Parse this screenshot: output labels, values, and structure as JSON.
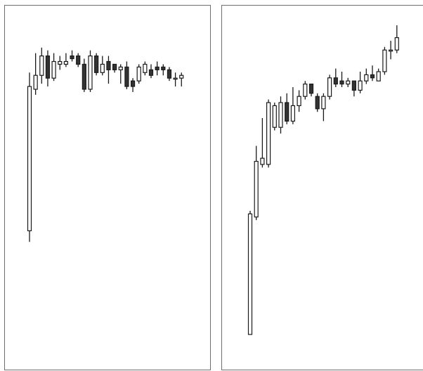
{
  "chart_data": [
    {
      "type": "candlestick",
      "title": "",
      "xlabel": "",
      "ylabel": "",
      "ylim": [
        0,
        100
      ],
      "grid": false,
      "legend": "none",
      "colors": {
        "wick": "#1a1a1a",
        "body_up": "#ffffff",
        "body_down": "#333333",
        "outline": "#1a1a1a"
      },
      "series": [
        {
          "candles": [
            {
              "o": 29,
              "c": 81,
              "h": 86,
              "l": 25
            },
            {
              "o": 80,
              "c": 85,
              "h": 93,
              "l": 78
            },
            {
              "o": 85,
              "c": 92,
              "h": 95,
              "l": 82
            },
            {
              "o": 92,
              "c": 84,
              "h": 94,
              "l": 81
            },
            {
              "o": 84,
              "c": 90,
              "h": 93,
              "l": 83
            },
            {
              "o": 89,
              "c": 90,
              "h": 92,
              "l": 87
            },
            {
              "o": 89,
              "c": 90,
              "h": 93,
              "l": 88
            },
            {
              "o": 92,
              "c": 91,
              "h": 94,
              "l": 90
            },
            {
              "o": 92,
              "c": 89,
              "h": 93,
              "l": 88
            },
            {
              "o": 89,
              "c": 80,
              "h": 91,
              "l": 79
            },
            {
              "o": 80,
              "c": 92,
              "h": 94,
              "l": 79
            },
            {
              "o": 92,
              "c": 86,
              "h": 93,
              "l": 85
            },
            {
              "o": 86,
              "c": 89,
              "h": 92,
              "l": 85
            },
            {
              "o": 90,
              "c": 87,
              "h": 92,
              "l": 82
            },
            {
              "o": 89,
              "c": 87,
              "h": 89,
              "l": 86
            },
            {
              "o": 87,
              "c": 88,
              "h": 89,
              "l": 82
            },
            {
              "o": 88,
              "c": 81,
              "h": 90,
              "l": 80
            },
            {
              "o": 83,
              "c": 81,
              "h": 84,
              "l": 79
            },
            {
              "o": 83,
              "c": 88,
              "h": 89,
              "l": 82
            },
            {
              "o": 86,
              "c": 89,
              "h": 90,
              "l": 85
            },
            {
              "o": 87,
              "c": 85,
              "h": 89,
              "l": 84
            },
            {
              "o": 88,
              "c": 87,
              "h": 90,
              "l": 85
            },
            {
              "o": 88,
              "c": 87,
              "h": 89,
              "l": 85
            },
            {
              "o": 87,
              "c": 84,
              "h": 88,
              "l": 83
            },
            {
              "o": 84,
              "c": 84,
              "h": 86,
              "l": 81
            },
            {
              "o": 84,
              "c": 85,
              "h": 86,
              "l": 81
            }
          ]
        }
      ]
    },
    {
      "type": "candlestick",
      "title": "",
      "xlabel": "",
      "ylabel": "",
      "ylim": [
        0,
        100
      ],
      "grid": false,
      "legend": "none",
      "colors": {
        "wick": "#1a1a1a",
        "body_up": "#ffffff",
        "body_down": "#333333",
        "outline": "#1a1a1a"
      },
      "series": [
        {
          "candles": [
            {
              "o": 5,
              "c": 44,
              "h": 45,
              "l": 5
            },
            {
              "o": 43,
              "c": 61,
              "h": 66,
              "l": 42
            },
            {
              "o": 60,
              "c": 62,
              "h": 75,
              "l": 59
            },
            {
              "o": 60,
              "c": 80,
              "h": 81,
              "l": 59
            },
            {
              "o": 72,
              "c": 79,
              "h": 80,
              "l": 71
            },
            {
              "o": 72,
              "c": 80,
              "h": 82,
              "l": 70
            },
            {
              "o": 80,
              "c": 74,
              "h": 83,
              "l": 73
            },
            {
              "o": 74,
              "c": 79,
              "h": 85,
              "l": 73
            },
            {
              "o": 79,
              "c": 82,
              "h": 84,
              "l": 77
            },
            {
              "o": 82,
              "c": 86,
              "h": 87,
              "l": 81
            },
            {
              "o": 86,
              "c": 83,
              "h": 86,
              "l": 82
            },
            {
              "o": 82,
              "c": 78,
              "h": 83,
              "l": 77
            },
            {
              "o": 78,
              "c": 82,
              "h": 83,
              "l": 74
            },
            {
              "o": 82,
              "c": 88,
              "h": 89,
              "l": 81
            },
            {
              "o": 88,
              "c": 86,
              "h": 91,
              "l": 85
            },
            {
              "o": 87,
              "c": 86,
              "h": 90,
              "l": 85
            },
            {
              "o": 86,
              "c": 87,
              "h": 88,
              "l": 85
            },
            {
              "o": 87,
              "c": 84,
              "h": 87,
              "l": 82
            },
            {
              "o": 84,
              "c": 87,
              "h": 90,
              "l": 83
            },
            {
              "o": 87,
              "c": 89,
              "h": 91,
              "l": 86
            },
            {
              "o": 89,
              "c": 88,
              "h": 92,
              "l": 87
            },
            {
              "o": 87,
              "c": 90,
              "h": 91,
              "l": 87
            },
            {
              "o": 90,
              "c": 97,
              "h": 98,
              "l": 89
            },
            {
              "o": 97,
              "c": 97,
              "h": 100,
              "l": 94
            },
            {
              "o": 97,
              "c": 101,
              "h": 105,
              "l": 96
            }
          ]
        }
      ]
    }
  ]
}
